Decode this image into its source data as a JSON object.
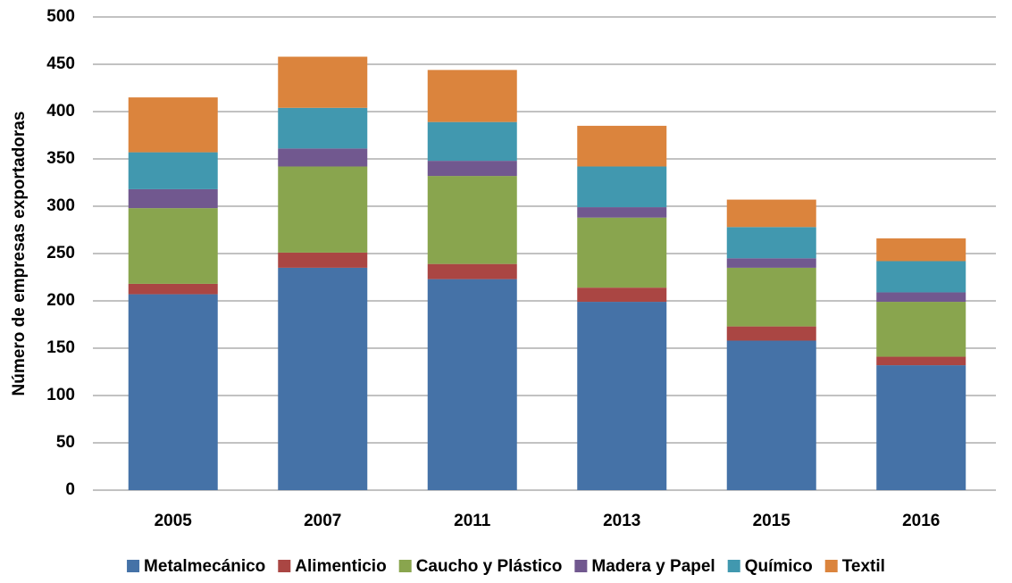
{
  "chart_data": {
    "type": "stacked_bar",
    "y_label": "Número de empresas exportadoras",
    "categories": [
      "2005",
      "2007",
      "2011",
      "2013",
      "2015",
      "2016"
    ],
    "series": [
      {
        "name": "Metalmecánico",
        "color": "#4572a7",
        "values": [
          207,
          235,
          223,
          199,
          158,
          132
        ]
      },
      {
        "name": "Alimenticio",
        "color": "#aa4643",
        "values": [
          11,
          16,
          16,
          15,
          15,
          9
        ]
      },
      {
        "name": "Caucho y Plástico",
        "color": "#89a54e",
        "values": [
          80,
          91,
          93,
          74,
          62,
          58
        ]
      },
      {
        "name": "Madera y Papel",
        "color": "#71588f",
        "values": [
          20,
          19,
          16,
          11,
          10,
          10
        ]
      },
      {
        "name": "Químico",
        "color": "#4198af",
        "values": [
          39,
          43,
          41,
          43,
          33,
          33
        ]
      },
      {
        "name": "Textil",
        "color": "#db843d",
        "values": [
          58,
          54,
          55,
          43,
          29,
          24
        ]
      }
    ],
    "ylim": [
      0,
      500
    ],
    "yticks": [
      0,
      50,
      100,
      150,
      200,
      250,
      300,
      350,
      400,
      450,
      500
    ],
    "grid": true,
    "legend": "bottom"
  }
}
